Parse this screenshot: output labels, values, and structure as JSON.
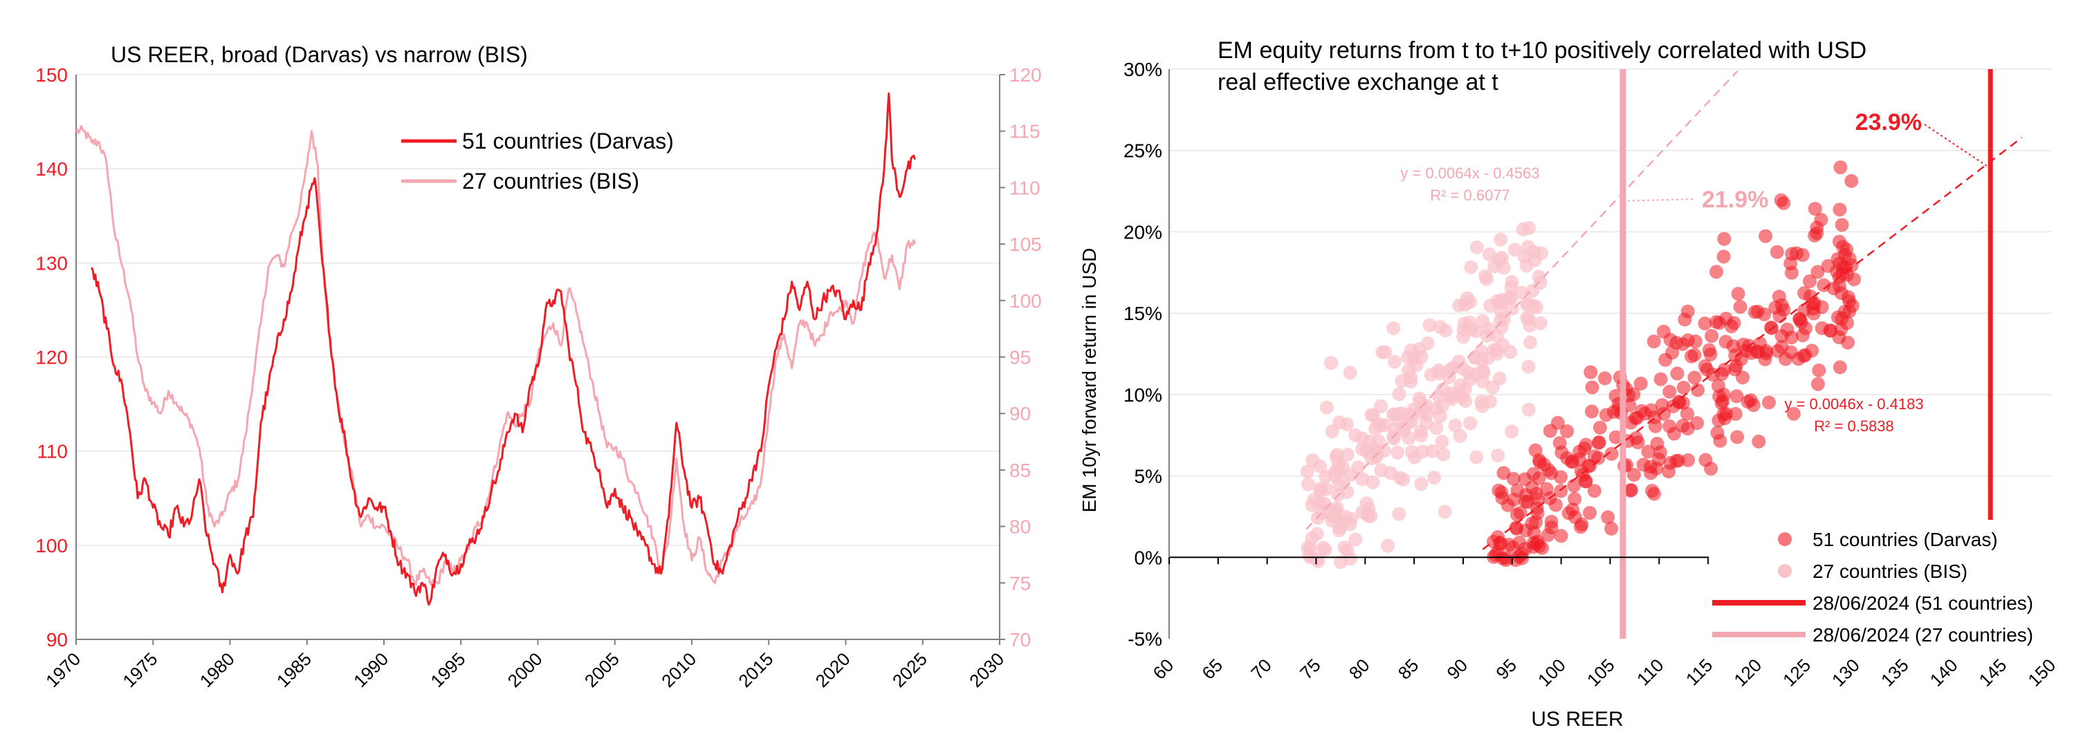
{
  "colors": {
    "red": "#ee1c25",
    "pink": "#f4a7b0",
    "pink_light": "#f8c3c9",
    "axis": "#7f7f7f",
    "grid": "#e6e6e6",
    "text": "#000000"
  },
  "chart_data": [
    {
      "type": "line",
      "title": "US REER, broad (Darvas) vs narrow (BIS)",
      "xlim": [
        1970,
        2030
      ],
      "ylim_left": [
        90,
        150
      ],
      "ylim_right": [
        70,
        120
      ],
      "x_ticks": [
        "1970",
        "1975",
        "1980",
        "1985",
        "1990",
        "1995",
        "2000",
        "2005",
        "2010",
        "2015",
        "2020",
        "2025",
        "2030"
      ],
      "y_left_ticks": [
        "90",
        "100",
        "110",
        "120",
        "130",
        "140",
        "150"
      ],
      "y_right_ticks": [
        "70",
        "75",
        "80",
        "85",
        "90",
        "95",
        "100",
        "105",
        "110",
        "115",
        "120"
      ],
      "legend_position": "top-center",
      "series": [
        {
          "name": "51 countries (Darvas)",
          "axis": "left",
          "color": "#ee1c25",
          "x": [
            1971.0,
            1971.5,
            1972.0,
            1972.5,
            1973.0,
            1973.5,
            1974.0,
            1974.5,
            1975.0,
            1975.5,
            1976.0,
            1976.5,
            1977.0,
            1977.5,
            1978.0,
            1978.5,
            1979.0,
            1979.5,
            1980.0,
            1980.5,
            1981.0,
            1981.5,
            1982.0,
            1982.5,
            1983.0,
            1983.5,
            1984.0,
            1984.5,
            1985.0,
            1985.5,
            1986.0,
            1986.5,
            1987.0,
            1987.5,
            1988.0,
            1988.5,
            1989.0,
            1989.5,
            1990.0,
            1990.5,
            1991.0,
            1991.5,
            1992.0,
            1992.5,
            1993.0,
            1993.5,
            1994.0,
            1994.5,
            1995.0,
            1995.5,
            1996.0,
            1996.5,
            1997.0,
            1997.5,
            1998.0,
            1998.5,
            1999.0,
            1999.5,
            2000.0,
            2000.5,
            2001.0,
            2001.5,
            2002.0,
            2002.5,
            2003.0,
            2003.5,
            2004.0,
            2004.5,
            2005.0,
            2005.5,
            2006.0,
            2006.5,
            2007.0,
            2007.5,
            2008.0,
            2008.5,
            2009.0,
            2009.5,
            2010.0,
            2010.5,
            2011.0,
            2011.5,
            2012.0,
            2012.5,
            2013.0,
            2013.5,
            2014.0,
            2014.5,
            2015.0,
            2015.5,
            2016.0,
            2016.5,
            2017.0,
            2017.5,
            2018.0,
            2018.5,
            2019.0,
            2019.5,
            2020.0,
            2020.5,
            2021.0,
            2021.5,
            2022.0,
            2022.5,
            2022.8,
            2023.0,
            2023.5,
            2024.0,
            2024.5
          ],
          "values": [
            129.5,
            127,
            123,
            119,
            117,
            112,
            105,
            107,
            104,
            102,
            101,
            104,
            102,
            103,
            107,
            101,
            98,
            95,
            99,
            97,
            101,
            103,
            113,
            117,
            121,
            124,
            127,
            132,
            136,
            139,
            130,
            122,
            115,
            111,
            106,
            103,
            105,
            104,
            104,
            101,
            98,
            97,
            95,
            96,
            94,
            98,
            99,
            97,
            98,
            100,
            101,
            103,
            106,
            108,
            112,
            114,
            112,
            117,
            119,
            125,
            126,
            127,
            121,
            117,
            112,
            110,
            108,
            104,
            106,
            104,
            103,
            101,
            100,
            98,
            97,
            103,
            113,
            108,
            104,
            105,
            102,
            98,
            97,
            100,
            103,
            105,
            108,
            110,
            117,
            121,
            124,
            128,
            125,
            128,
            124,
            126,
            127,
            127,
            124,
            126,
            125,
            130,
            133,
            140,
            148,
            141,
            137,
            140,
            141
          ]
        },
        {
          "name": "27 countries (BIS)",
          "axis": "right",
          "color": "#f4a7b0",
          "x": [
            1970.0,
            1970.5,
            1971.0,
            1971.5,
            1972.0,
            1972.5,
            1973.0,
            1973.5,
            1974.0,
            1974.5,
            1975.0,
            1975.5,
            1976.0,
            1976.5,
            1977.0,
            1977.5,
            1978.0,
            1978.5,
            1979.0,
            1979.5,
            1980.0,
            1980.5,
            1981.0,
            1981.5,
            1982.0,
            1982.5,
            1983.0,
            1983.5,
            1984.0,
            1984.5,
            1985.0,
            1985.3,
            1985.7,
            1986.0,
            1986.5,
            1987.0,
            1987.5,
            1988.0,
            1988.5,
            1989.0,
            1989.5,
            1990.0,
            1990.5,
            1991.0,
            1991.5,
            1992.0,
            1992.5,
            1993.0,
            1993.5,
            1994.0,
            1994.5,
            1995.0,
            1995.5,
            1996.0,
            1996.5,
            1997.0,
            1997.5,
            1998.0,
            1998.5,
            1999.0,
            1999.5,
            2000.0,
            2000.5,
            2001.0,
            2001.5,
            2002.0,
            2002.5,
            2003.0,
            2003.5,
            2004.0,
            2004.5,
            2005.0,
            2005.5,
            2006.0,
            2006.5,
            2007.0,
            2007.5,
            2008.0,
            2008.5,
            2009.0,
            2009.5,
            2010.0,
            2010.5,
            2011.0,
            2011.5,
            2012.0,
            2012.5,
            2013.0,
            2013.5,
            2014.0,
            2014.5,
            2015.0,
            2015.5,
            2016.0,
            2016.5,
            2017.0,
            2017.5,
            2018.0,
            2018.5,
            2019.0,
            2019.5,
            2020.0,
            2020.5,
            2021.0,
            2021.5,
            2022.0,
            2022.5,
            2023.0,
            2023.5,
            2024.0,
            2024.5
          ],
          "values": [
            115,
            115,
            114,
            114,
            112,
            106,
            103,
            100,
            95,
            92,
            91,
            90,
            92,
            91,
            90,
            89,
            87,
            82,
            80,
            81,
            83,
            84,
            88,
            93,
            98,
            103,
            104,
            103,
            106,
            108,
            112,
            115,
            112,
            104,
            96,
            91,
            87,
            84,
            80,
            81,
            80,
            80,
            79,
            78,
            77,
            75,
            76,
            75,
            75,
            77,
            76,
            77,
            78,
            80,
            81,
            84,
            87,
            90,
            89,
            90,
            91,
            95,
            97,
            98,
            96,
            101,
            99,
            96,
            93,
            90,
            87,
            87,
            86,
            84,
            83,
            81,
            79,
            76,
            79,
            86,
            80,
            77,
            79,
            76,
            75,
            77,
            78,
            80,
            81,
            82,
            84,
            90,
            95,
            97,
            94,
            98,
            98,
            96,
            97,
            99,
            99,
            100,
            98,
            102,
            105,
            106,
            102,
            104,
            101,
            105,
            105
          ]
        }
      ]
    },
    {
      "type": "scatter",
      "title_lines": [
        "EM equity returns from t to t+10 positively correlated with USD",
        "real effective exchange at t"
      ],
      "xlabel": "US REER",
      "ylabel": "EM 10yr forward return in USD",
      "xlim": [
        60,
        150
      ],
      "ylim": [
        -0.05,
        0.3
      ],
      "x_ticks": [
        "60",
        "65",
        "70",
        "75",
        "80",
        "85",
        "90",
        "95",
        "100",
        "105",
        "110",
        "115",
        "120",
        "125",
        "130",
        "135",
        "140",
        "145",
        "150"
      ],
      "y_ticks": [
        "-5%",
        "0%",
        "5%",
        "10%",
        "15%",
        "20%",
        "25%",
        "30%"
      ],
      "legend_position": "bottom-right",
      "series": [
        {
          "name": "51 countries (Darvas)",
          "color": "#ee1c25",
          "center_x": 105,
          "trend_slope": 0.0046,
          "trend_intercept": -0.4183
        },
        {
          "name": "27 countries (BIS)",
          "color": "#f8c3c9",
          "center_x": 83,
          "trend_slope": 0.0064,
          "trend_intercept": -0.4563
        }
      ],
      "trendlines": [
        {
          "label_eq": "y = 0.0046x - 0.4183",
          "label_r2": "R² = 0.5838",
          "slope": 0.0046,
          "intercept": -0.4183,
          "x_range": [
            92,
            147
          ],
          "color": "#ee1c25",
          "label_position": "right"
        },
        {
          "label_eq": "y = 0.0064x - 0.4563",
          "label_r2": "R² = 0.6077",
          "slope": 0.0064,
          "intercept": -0.4563,
          "x_range": [
            74,
            118
          ],
          "color": "#f4a7b0",
          "label_position": "top-left"
        }
      ],
      "vlines": [
        {
          "name": "28/06/2024 (51 countries)",
          "x": 143.8,
          "color": "#ee1c25"
        },
        {
          "name": "28/06/2024 (27 countries)",
          "x": 106.3,
          "color": "#f4a7b0"
        }
      ],
      "annotations": [
        {
          "text": "23.9%",
          "x": 143.8,
          "y": 0.239,
          "color": "#ee1c25"
        },
        {
          "text": "21.9%",
          "x": 106.3,
          "y": 0.219,
          "color": "#f4a7b0"
        }
      ]
    }
  ]
}
